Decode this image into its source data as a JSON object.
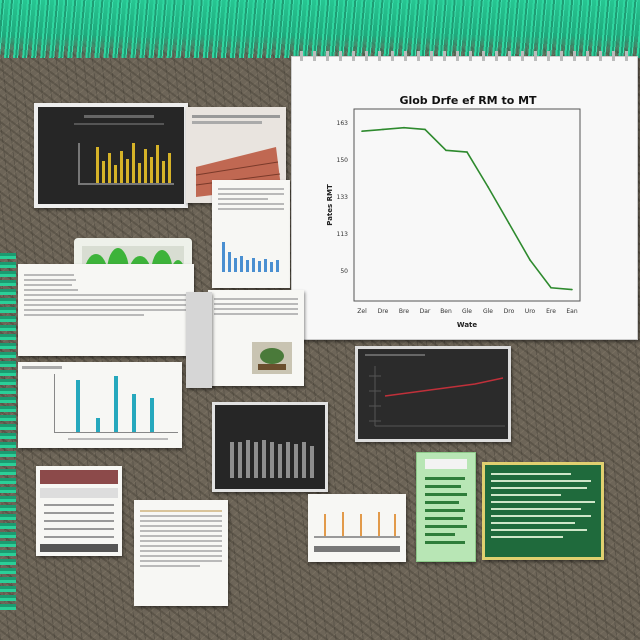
{
  "scene": {
    "accent_grass": "#2fd6a0",
    "background": "#6d6558"
  },
  "chart_data": {
    "type": "line",
    "title": "Glob Drfe ef RM to MT",
    "xlabel": "Wate",
    "ylabel": "Pates RMT",
    "y_tick_labels": [
      "163",
      "150",
      "133",
      "113",
      "50"
    ],
    "x_tick_labels": [
      "Zel",
      "Dre",
      "Bre",
      "Dar",
      "Ben",
      "Gle",
      "Gle",
      "Dro",
      "Uro",
      "Ere",
      "Ean"
    ],
    "ylim": [
      0,
      100
    ],
    "series": [
      {
        "color": "#2e8a2e",
        "x": [
          0,
          1,
          2,
          3,
          4,
          5,
          6,
          7,
          8,
          9,
          10
        ],
        "y": [
          93,
          94,
          95,
          94,
          82,
          81,
          61,
          40,
          19,
          3,
          2
        ]
      }
    ],
    "grid": false
  }
}
